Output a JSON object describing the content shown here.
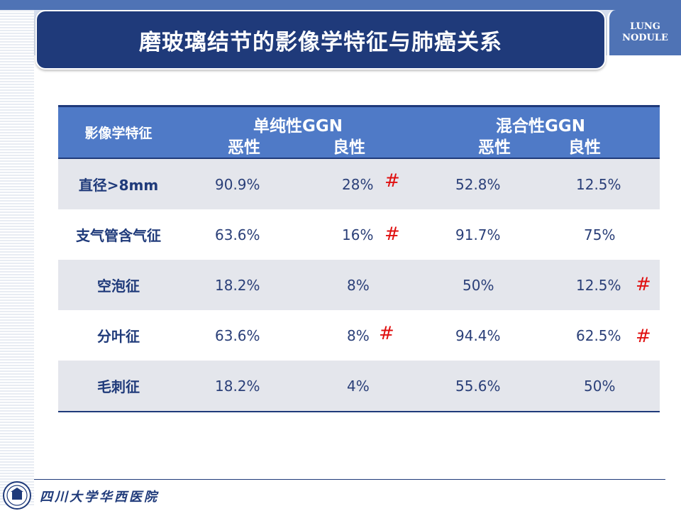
{
  "title": "磨玻璃结节的影像学特征与肺癌关系",
  "logo_tab": {
    "line1": "LUNG",
    "line2": "NODULE"
  },
  "table": {
    "header_label": "影像学特征",
    "groups": [
      {
        "name": "单纯性GGN",
        "sub": [
          "恶性",
          "良性"
        ]
      },
      {
        "name": "混合性GGN",
        "sub": [
          "恶性",
          "良性"
        ]
      }
    ],
    "rows": [
      {
        "label": "直径>8mm",
        "values": [
          "90.9%",
          "28%",
          "52.8%",
          "12.5%"
        ],
        "marks": [
          "",
          "#",
          "",
          ""
        ]
      },
      {
        "label": "支气管含气征",
        "values": [
          "63.6%",
          "16%",
          "91.7%",
          "75%"
        ],
        "marks": [
          "",
          "#",
          "",
          ""
        ]
      },
      {
        "label": "空泡征",
        "values": [
          "18.2%",
          "8%",
          "50%",
          "12.5%"
        ],
        "marks": [
          "",
          "",
          "",
          "#"
        ]
      },
      {
        "label": "分叶征",
        "values": [
          "63.6%",
          "8%",
          "94.4%",
          "62.5%"
        ],
        "marks": [
          "",
          "#",
          "",
          "#"
        ]
      },
      {
        "label": "毛刺征",
        "values": [
          "18.2%",
          "4%",
          "55.6%",
          "50%"
        ],
        "marks": [
          "",
          "",
          "",
          ""
        ]
      }
    ]
  },
  "footer": {
    "institution": "四川大学华西医院"
  },
  "colors": {
    "navy": "#1f3a7a",
    "header_blue": "#4f7ac7",
    "mark_red": "#e01010",
    "row_shade": "#e4e6ec"
  }
}
